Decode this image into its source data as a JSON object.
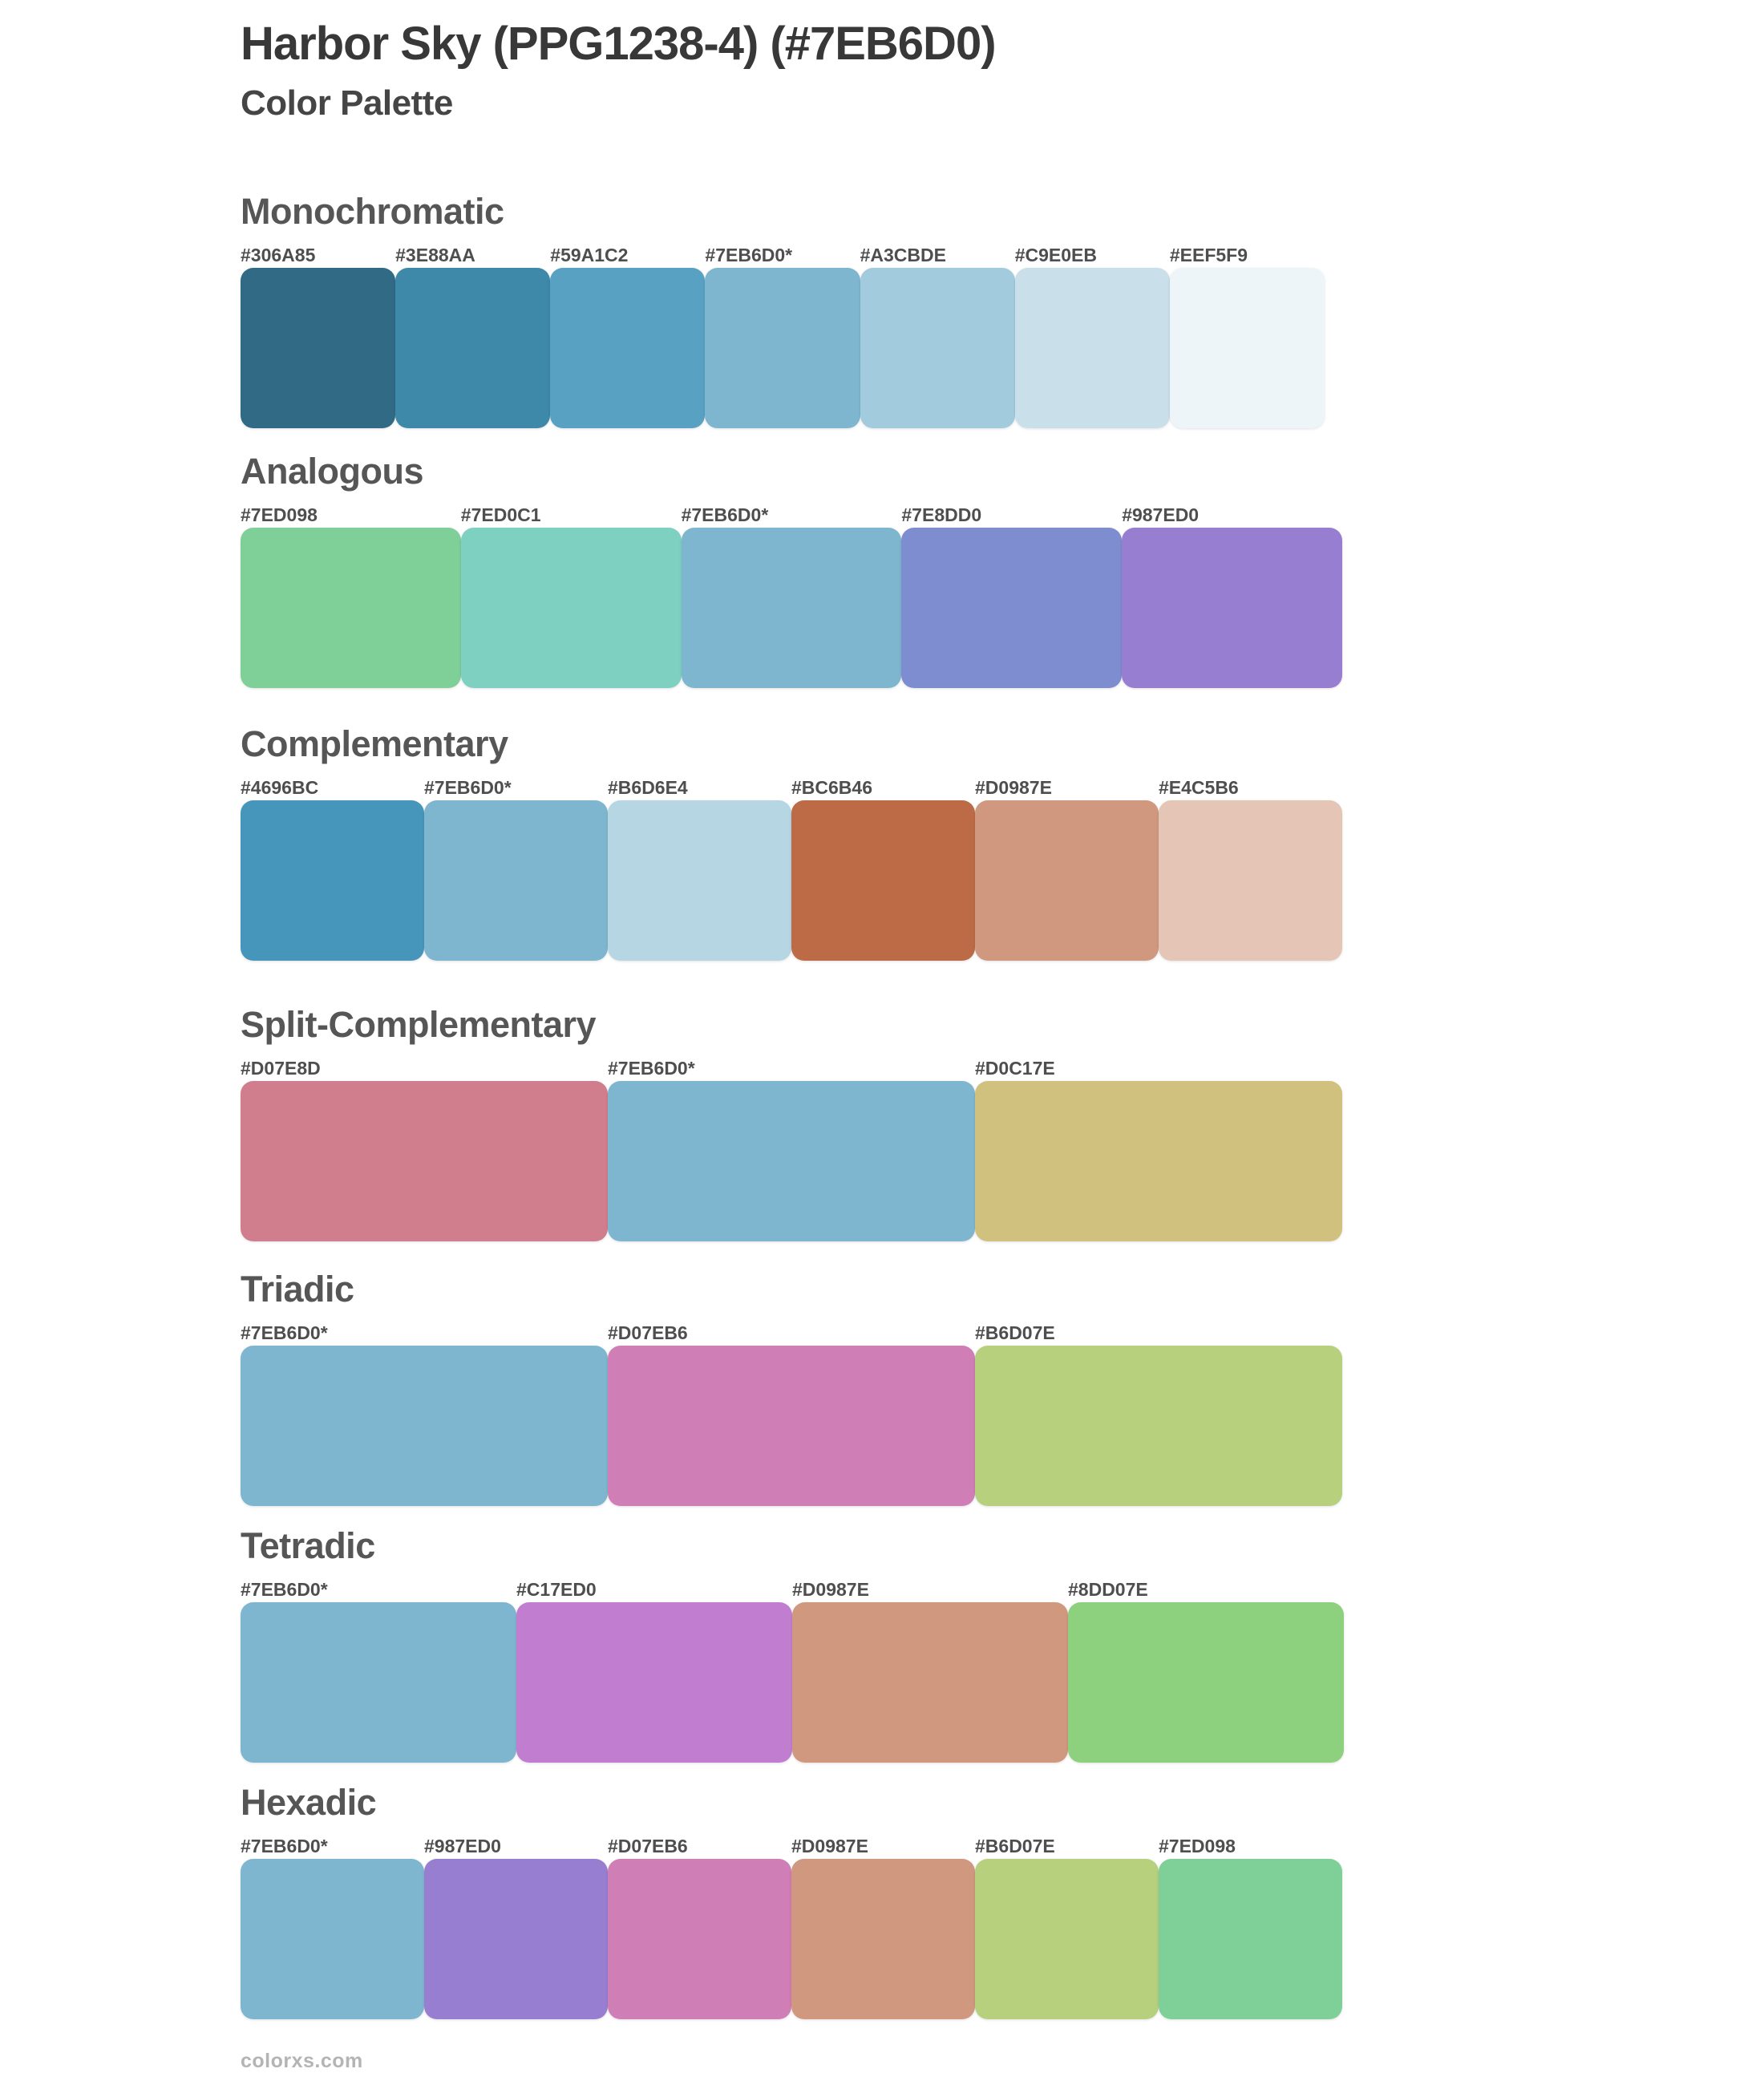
{
  "page": {
    "title": "Harbor Sky (PPG1238-4) (#7EB6D0)",
    "subtitle": "Color Palette",
    "base_color": "#7EB6D0",
    "footer": "colorxs.com"
  },
  "sections": [
    {
      "name": "Monochromatic",
      "swatches": [
        {
          "label": "#306A85",
          "color": "#306A85"
        },
        {
          "label": "#3E88AA",
          "color": "#3E88AA"
        },
        {
          "label": "#59A1C2",
          "color": "#59A1C2"
        },
        {
          "label": "#7EB6D0*",
          "color": "#7EB6D0"
        },
        {
          "label": "#A3CBDE",
          "color": "#A3CBDE"
        },
        {
          "label": "#C9E0EB",
          "color": "#C9E0EB"
        },
        {
          "label": "#EEF5F9",
          "color": "#EEF5F9"
        }
      ]
    },
    {
      "name": "Analogous",
      "swatches": [
        {
          "label": "#7ED098",
          "color": "#7ED098"
        },
        {
          "label": "#7ED0C1",
          "color": "#7ED0C1"
        },
        {
          "label": "#7EB6D0*",
          "color": "#7EB6D0"
        },
        {
          "label": "#7E8DD0",
          "color": "#7E8DD0"
        },
        {
          "label": "#987ED0",
          "color": "#987ED0"
        }
      ]
    },
    {
      "name": "Complementary",
      "swatches": [
        {
          "label": "#4696BC",
          "color": "#4696BC"
        },
        {
          "label": "#7EB6D0*",
          "color": "#7EB6D0"
        },
        {
          "label": "#B6D6E4",
          "color": "#B6D6E4"
        },
        {
          "label": "#BC6B46",
          "color": "#BC6B46"
        },
        {
          "label": "#D0987E",
          "color": "#D0987E"
        },
        {
          "label": "#E4C5B6",
          "color": "#E4C5B6"
        }
      ]
    },
    {
      "name": "Split-Complementary",
      "swatches": [
        {
          "label": "#D07E8D",
          "color": "#D07E8D"
        },
        {
          "label": "#7EB6D0*",
          "color": "#7EB6D0"
        },
        {
          "label": "#D0C17E",
          "color": "#D0C17E"
        }
      ]
    },
    {
      "name": "Triadic",
      "swatches": [
        {
          "label": "#7EB6D0*",
          "color": "#7EB6D0"
        },
        {
          "label": "#D07EB6",
          "color": "#D07EB6"
        },
        {
          "label": "#B6D07E",
          "color": "#B6D07E"
        }
      ]
    },
    {
      "name": "Tetradic",
      "swatches": [
        {
          "label": "#7EB6D0*",
          "color": "#7EB6D0"
        },
        {
          "label": "#C17ED0",
          "color": "#C17ED0"
        },
        {
          "label": "#D0987E",
          "color": "#D0987E"
        },
        {
          "label": "#8DD07E",
          "color": "#8DD07E"
        }
      ]
    },
    {
      "name": "Hexadic",
      "swatches": [
        {
          "label": "#7EB6D0*",
          "color": "#7EB6D0"
        },
        {
          "label": "#987ED0",
          "color": "#987ED0"
        },
        {
          "label": "#D07EB6",
          "color": "#D07EB6"
        },
        {
          "label": "#D0987E",
          "color": "#D0987E"
        },
        {
          "label": "#B6D07E",
          "color": "#B6D07E"
        },
        {
          "label": "#7ED098",
          "color": "#7ED098"
        }
      ]
    }
  ]
}
